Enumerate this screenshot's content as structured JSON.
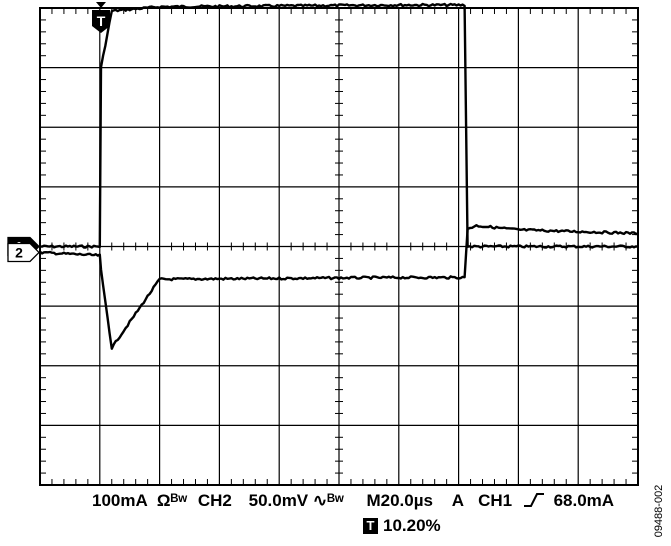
{
  "chart_data": {
    "type": "line",
    "grid": true,
    "x": [
      0,
      10,
      10.2,
      12,
      20,
      60,
      71,
      71.5,
      73,
      80,
      100
    ],
    "series": [
      {
        "channel_marker": "1",
        "values": [
          0,
          0,
          3,
          3.95,
          4.02,
          4.05,
          4.05,
          0,
          0,
          0,
          0
        ]
      },
      {
        "channel_marker": "2",
        "values": [
          -0.1,
          -0.15,
          -0.4,
          -1.7,
          -0.55,
          -0.52,
          -0.52,
          0.3,
          0.35,
          0.28,
          0.22
        ]
      }
    ],
    "xlim": [
      0,
      100
    ],
    "ylim": [
      -4,
      4
    ],
    "trigger_marker": "T",
    "colors": {
      "trace": "#000000",
      "grid": "#000000",
      "background": "#ffffff"
    }
  },
  "status": {
    "ch1_scale": "100mA",
    "ch1_coupling": "Ωᴮʷ",
    "ch2_label": "CH2",
    "ch2_scale": "50.0mV",
    "ch2_coupling": "∿ᴮʷ",
    "timebase": "M20.0µs",
    "trigger_mode": "A",
    "trigger_source": "CH1",
    "trigger_slope_icon": "rising-edge",
    "trigger_level": "68.0mA",
    "trigger_icon_label": "T",
    "trigger_position": "10.20%"
  },
  "figure_id": "09488-002"
}
